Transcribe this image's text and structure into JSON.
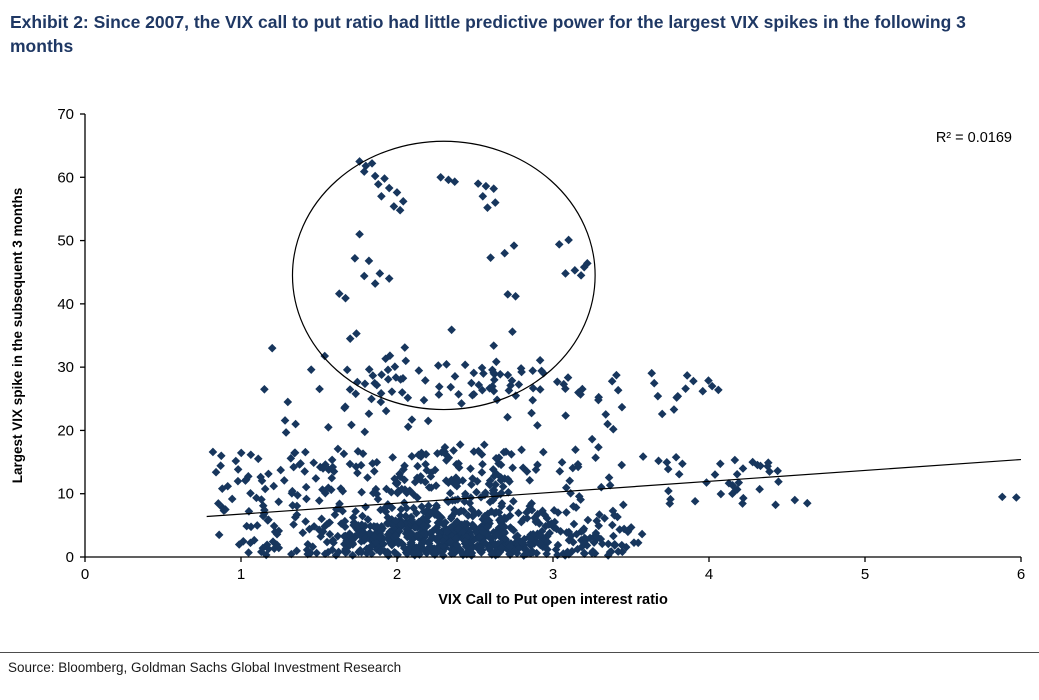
{
  "theme": {
    "title_color": "#1F3864",
    "marker_color": "#17365D",
    "axis_color": "#000000",
    "annotation_color": "#000000"
  },
  "header": {
    "title": "Exhibit 2: Since 2007, the VIX call to put ratio had little predictive power for the largest VIX spikes in the following 3 months"
  },
  "footer": {
    "source": "Source: Bloomberg, Goldman Sachs Global Investment Research"
  },
  "chart_data": {
    "type": "scatter",
    "title": "Exhibit 2: Since 2007, the VIX call to put ratio had little predictive power for the largest VIX spikes in the following 3 months",
    "xlabel": "VIX Call to Put open interest ratio",
    "ylabel": "Largest VIX spike in the subsequent 3 months",
    "xlim": [
      0,
      6
    ],
    "ylim": [
      0,
      70
    ],
    "xticks": [
      0,
      1,
      2,
      3,
      4,
      5,
      6
    ],
    "yticks": [
      0,
      10,
      20,
      30,
      40,
      50,
      60,
      70
    ],
    "grid": false,
    "legend": false,
    "annotation": "R² = 0.0169",
    "marker": "diamond",
    "trendline": {
      "x1": 0.78,
      "y1": 6.4,
      "x2": 6.0,
      "y2": 15.4
    },
    "highlight_ellipse": {
      "cx": 2.3,
      "cy": 44.5,
      "rx": 0.97,
      "ry": 21.2
    },
    "seed": 42,
    "clusters": [
      {
        "name": "core-cloud",
        "count": 750,
        "x": {
          "dist": "gauss",
          "mean": 2.35,
          "sd": 0.55,
          "min": 1.0,
          "max": 3.6
        },
        "y": {
          "dist": "absgauss",
          "scale": 4.5,
          "min": 0.2,
          "max": 13
        }
      },
      {
        "name": "upper-fringe",
        "count": 150,
        "x": {
          "dist": "gauss",
          "mean": 2.2,
          "sd": 0.65,
          "min": 0.9,
          "max": 3.55
        },
        "y": {
          "dist": "uniform",
          "min": 10,
          "max": 17
        }
      },
      {
        "name": "mid-band",
        "count": 95,
        "x": {
          "dist": "gauss",
          "mean": 2.55,
          "sd": 0.62,
          "min": 1.5,
          "max": 4.05
        },
        "y": {
          "dist": "gauss",
          "mean": 27.5,
          "sd": 2.2,
          "min": 23,
          "max": 32
        }
      },
      {
        "name": "right-tail",
        "count": 30,
        "x": {
          "dist": "uniform",
          "min": 3.55,
          "max": 4.45
        },
        "y": {
          "dist": "uniform",
          "min": 7.5,
          "max": 16
        }
      },
      {
        "name": "left-edge",
        "count": 30,
        "x": {
          "dist": "uniform",
          "min": 0.85,
          "max": 1.25
        },
        "y": {
          "dist": "uniform",
          "min": 0.5,
          "max": 17
        }
      },
      {
        "name": "gap-sprinkle",
        "count": 18,
        "x": {
          "dist": "uniform",
          "min": 1.2,
          "max": 3.4
        },
        "y": {
          "dist": "uniform",
          "min": 17,
          "max": 23
        }
      }
    ],
    "highlight_points": [
      [
        1.76,
        62.5
      ],
      [
        1.8,
        61.8
      ],
      [
        1.84,
        62.2
      ],
      [
        1.79,
        60.9
      ],
      [
        1.86,
        60.2
      ],
      [
        1.92,
        59.8
      ],
      [
        1.88,
        58.9
      ],
      [
        1.95,
        58.3
      ],
      [
        2.0,
        57.6
      ],
      [
        1.9,
        57.0
      ],
      [
        2.04,
        56.2
      ],
      [
        1.98,
        55.4
      ],
      [
        2.02,
        54.8
      ],
      [
        2.28,
        60.0
      ],
      [
        2.33,
        59.6
      ],
      [
        2.37,
        59.3
      ],
      [
        2.52,
        59.0
      ],
      [
        2.57,
        58.6
      ],
      [
        2.62,
        58.2
      ],
      [
        2.55,
        57.0
      ],
      [
        2.63,
        56.0
      ],
      [
        2.58,
        55.2
      ],
      [
        2.69,
        48.0
      ],
      [
        2.6,
        47.3
      ],
      [
        2.75,
        49.2
      ],
      [
        3.04,
        49.4
      ],
      [
        3.1,
        50.1
      ],
      [
        3.14,
        45.3
      ],
      [
        3.08,
        44.8
      ],
      [
        3.18,
        44.5
      ],
      [
        3.2,
        45.8
      ],
      [
        3.22,
        46.4
      ],
      [
        1.76,
        51.0
      ],
      [
        1.73,
        47.2
      ],
      [
        1.82,
        46.8
      ],
      [
        1.89,
        44.8
      ],
      [
        1.95,
        44.0
      ],
      [
        1.86,
        43.2
      ],
      [
        1.79,
        44.4
      ],
      [
        1.63,
        41.6
      ],
      [
        1.67,
        40.9
      ],
      [
        2.71,
        41.5
      ],
      [
        2.76,
        41.2
      ],
      [
        2.74,
        35.6
      ],
      [
        1.7,
        34.5
      ],
      [
        1.74,
        35.3
      ],
      [
        2.35,
        35.9
      ],
      [
        2.05,
        33.1
      ],
      [
        2.62,
        33.4
      ],
      [
        1.2,
        33.0
      ],
      [
        1.45,
        29.6
      ],
      [
        1.15,
        26.5
      ],
      [
        1.3,
        24.5
      ],
      [
        1.35,
        21.0
      ],
      [
        1.56,
        20.5
      ],
      [
        2.2,
        21.5
      ],
      [
        2.9,
        20.8
      ],
      [
        3.35,
        21.0
      ],
      [
        3.7,
        22.6
      ],
      [
        3.85,
        26.6
      ],
      [
        3.9,
        27.8
      ],
      [
        3.96,
        26.2
      ],
      [
        4.02,
        27.0
      ],
      [
        4.06,
        26.4
      ],
      [
        3.8,
        25.4
      ],
      [
        4.15,
        10.0
      ],
      [
        4.22,
        9.3
      ],
      [
        4.28,
        15.0
      ],
      [
        4.33,
        14.4
      ],
      [
        4.38,
        14.9
      ],
      [
        4.44,
        13.6
      ],
      [
        4.55,
        9.0
      ],
      [
        4.63,
        8.5
      ],
      [
        5.88,
        9.5
      ],
      [
        5.97,
        9.4
      ],
      [
        0.82,
        16.6
      ],
      [
        0.84,
        13.4
      ],
      [
        0.88,
        10.8
      ],
      [
        0.86,
        3.5
      ],
      [
        0.9,
        7.5
      ]
    ]
  }
}
